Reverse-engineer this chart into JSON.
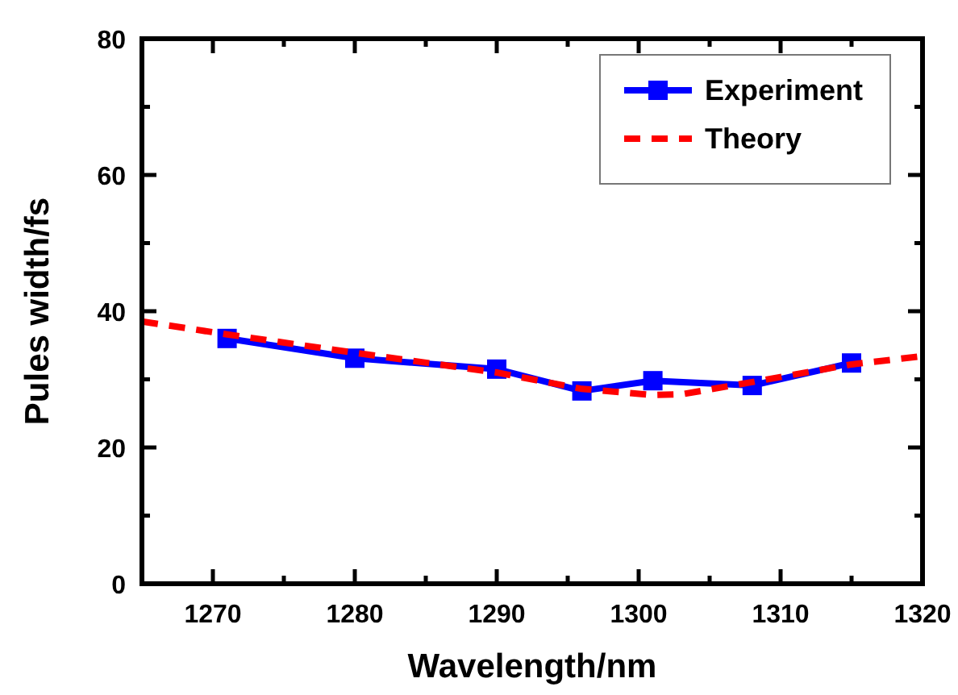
{
  "chart_data": {
    "type": "line",
    "xlabel": "Wavelength/nm",
    "ylabel": "Pules width/fs",
    "xlim": [
      1265,
      1320
    ],
    "xticks": [
      1270,
      {
        "value": 1275,
        "label": null
      },
      1280,
      {
        "value": 1285,
        "label": null
      },
      1290,
      {
        "value": 1295,
        "label": null
      },
      1300,
      {
        "value": 1305,
        "label": null
      },
      1310,
      {
        "value": 1315,
        "label": null
      },
      1320
    ],
    "ylim": [
      0,
      80
    ],
    "yticks": [
      0,
      {
        "value": 10,
        "label": null
      },
      20,
      {
        "value": 30,
        "label": null
      },
      40,
      {
        "value": 50,
        "label": null
      },
      60,
      {
        "value": 70,
        "label": null
      },
      80
    ],
    "legend": "top right",
    "grid": false,
    "series": [
      {
        "name": "Experiment",
        "color": "#0000ff",
        "marker": "square",
        "line_style": "solid",
        "x": [
          1271,
          1280,
          1290,
          1296,
          1301,
          1308,
          1315
        ],
        "values": [
          36.0,
          33.1,
          31.5,
          28.3,
          29.8,
          29.1,
          32.4
        ]
      },
      {
        "name": "Theory",
        "color": "#ff0000",
        "marker": "none",
        "line_style": "dashed",
        "x": [
          1265,
          1271,
          1280,
          1290,
          1296,
          1301,
          1303,
          1308,
          1315,
          1320
        ],
        "values": [
          38.5,
          36.6,
          33.9,
          31.0,
          28.6,
          27.7,
          27.8,
          29.6,
          32.2,
          33.4
        ]
      }
    ]
  }
}
